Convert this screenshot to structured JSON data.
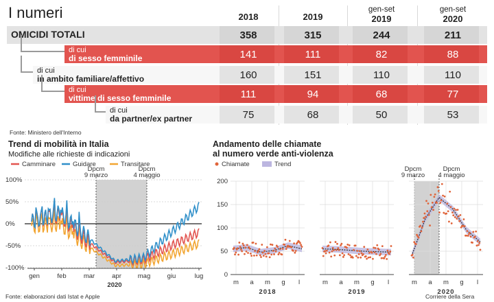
{
  "table": {
    "title": "I numeri",
    "columns": [
      {
        "top": "",
        "bottom": "2018"
      },
      {
        "top": "",
        "bottom": "2019"
      },
      {
        "top": "gen-set",
        "bottom": "2019"
      },
      {
        "top": "gen-set",
        "bottom": "2020"
      }
    ],
    "rows": [
      {
        "small": "",
        "label": "OMICIDI TOTALI",
        "values": [
          "358",
          "315",
          "244",
          "211"
        ],
        "style": "total"
      },
      {
        "small": "di cui",
        "label": "di sesso femminile",
        "values": [
          "141",
          "111",
          "82",
          "88"
        ],
        "style": "red"
      },
      {
        "small": "di cui",
        "label": "in ambito familiare/affettivo",
        "values": [
          "160",
          "151",
          "110",
          "110"
        ],
        "style": "grey"
      },
      {
        "small": "di cui",
        "label": "vittime di sesso femminile",
        "values": [
          "111",
          "94",
          "68",
          "77"
        ],
        "style": "red"
      },
      {
        "small": "di cui",
        "label": "da partner/ex partner",
        "values": [
          "75",
          "68",
          "50",
          "53"
        ],
        "style": "grey"
      }
    ],
    "source": "Fonte: Ministero dell'Interno"
  },
  "colors": {
    "red": "#e2544f",
    "grey": "#e3e3e3",
    "walk": "#e2544f",
    "drive": "#2f8fc9",
    "transit": "#f2a531",
    "chiamate": "#e0643a",
    "trend_band": "#bcb6e0",
    "shade": "#d2d2d2"
  },
  "mobility": {
    "title": "Trend di mobilità in Italia",
    "subtitle": "Modifiche alle richieste di indicazioni",
    "legend": [
      "Camminare",
      "Guidare",
      "Transitare"
    ],
    "annot1": "Dpcm\n9 marzo",
    "annot2": "Dpcm\n4 maggio",
    "year": "2020",
    "source": "Fonte: elaborazioni dati Istat e Apple"
  },
  "calls": {
    "title": "Andamento delle chiamate\nal numero verde anti-violenza",
    "legend": [
      "Chiamate",
      "Trend"
    ],
    "annot1": "Dpcm\n9 marzo",
    "annot2": "Dpcm\n4 maggio",
    "source": "Corriere della Sera"
  },
  "chart_data": [
    {
      "type": "line",
      "title": "Trend di mobilità in Italia",
      "subtitle": "Modifiche alle richieste di indicazioni",
      "x": [
        "gen",
        "feb",
        "mar",
        "apr",
        "mag",
        "giu",
        "lug"
      ],
      "ylim": [
        -100,
        100
      ],
      "yticks": [
        "100%",
        "50%",
        "0%",
        "-50%",
        "-100%"
      ],
      "xlabel": "2020",
      "series": [
        {
          "name": "Camminare",
          "values": [
            5,
            20,
            -40,
            -88,
            -82,
            -50,
            -20
          ]
        },
        {
          "name": "Guidare",
          "values": [
            5,
            25,
            -30,
            -85,
            -78,
            -20,
            40
          ]
        },
        {
          "name": "Transitare",
          "values": [
            -5,
            0,
            -50,
            -95,
            -92,
            -70,
            -45
          ]
        }
      ]
    },
    {
      "type": "scatter",
      "title": "Andamento delle chiamate al numero verde anti-violenza",
      "ylim": [
        0,
        200
      ],
      "yticks": [
        "200",
        "150",
        "100",
        "50",
        "0"
      ],
      "panels": [
        {
          "year": "2018",
          "months": [
            "m",
            "a",
            "m",
            "g",
            "l"
          ],
          "trend": [
            55,
            58,
            48,
            52,
            62,
            55
          ]
        },
        {
          "year": "2019",
          "months": [
            "m",
            "a",
            "m",
            "g",
            "l"
          ],
          "trend": [
            55,
            54,
            52,
            50,
            49,
            48
          ]
        },
        {
          "year": "2020",
          "months": [
            "m",
            "a",
            "m",
            "g",
            "l"
          ],
          "trend": [
            40,
            120,
            165,
            140,
            95,
            70
          ]
        }
      ],
      "series": [
        {
          "name": "Chiamate"
        },
        {
          "name": "Trend"
        }
      ]
    }
  ]
}
